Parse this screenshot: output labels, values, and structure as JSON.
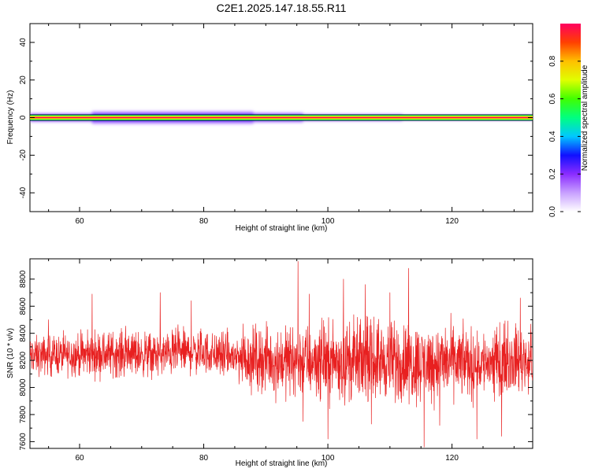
{
  "title": "C2E1.2025.147.18.55.R11",
  "colors": {
    "signal": "#e82020",
    "frame": "#000000",
    "colormap": [
      "#ffffff",
      "#c8a0ff",
      "#8a2cff",
      "#1010ff",
      "#00c8ff",
      "#00ff80",
      "#40ff00",
      "#e0ff00",
      "#ffc000",
      "#ff4000",
      "#ff0060"
    ]
  },
  "chart_data": [
    {
      "type": "heatmap",
      "name": "spectrogram",
      "xlabel": "Height of straight line (km)",
      "ylabel": "Frequency (Hz)",
      "xlim": [
        52,
        133
      ],
      "ylim": [
        -50,
        50
      ],
      "xticks": [
        60,
        80,
        100,
        120
      ],
      "yticks": [
        -40,
        -20,
        0,
        20,
        40
      ],
      "xtick_labels": [
        "60",
        "80",
        "100",
        "120"
      ],
      "ytick_labels": [
        "-40",
        "-20",
        "0",
        "20",
        "40"
      ],
      "colorbar": {
        "label": "Normalized spectral amplitude",
        "range": [
          0,
          1
        ],
        "ticks": [
          "0.0",
          "0.2",
          "0.4",
          "0.6",
          "0.8"
        ]
      },
      "band": {
        "center_hz": 0,
        "core_halfwidth_hz": 0.8,
        "outline_halfwidth_hz": 1.5,
        "spread": [
          {
            "x": [
              52,
              62
            ],
            "halfwidth_hz": 2.5
          },
          {
            "x": [
              62,
              88
            ],
            "halfwidth_hz": 3.6
          },
          {
            "x": [
              88,
              96
            ],
            "halfwidth_hz": 2.8
          },
          {
            "x": [
              96,
              112
            ],
            "halfwidth_hz": 2.0
          },
          {
            "x": [
              112,
              133
            ],
            "halfwidth_hz": 1.5
          }
        ]
      }
    },
    {
      "type": "line",
      "name": "snr",
      "xlabel": "Height of straight line (km)",
      "ylabel": "SNR (10 * v/v)",
      "xlim": [
        52,
        133
      ],
      "ylim": [
        7550,
        8950
      ],
      "xticks": [
        60,
        80,
        100,
        120
      ],
      "yticks": [
        7600,
        7800,
        8000,
        8200,
        8400,
        8600,
        8800
      ],
      "xtick_labels": [
        "60",
        "80",
        "100",
        "120"
      ],
      "ytick_labels": [
        "7600",
        "7800",
        "8000",
        "8200",
        "8400",
        "8600",
        "8800"
      ],
      "series": [
        {
          "name": "SNR",
          "x": [
            52,
            56,
            60,
            64,
            68,
            72,
            76,
            80,
            84,
            86,
            88,
            92,
            96,
            100,
            104,
            108,
            112,
            116,
            120,
            124,
            128,
            133
          ],
          "mean": [
            8230,
            8240,
            8240,
            8250,
            8250,
            8240,
            8260,
            8260,
            8230,
            8220,
            8220,
            8200,
            8200,
            8200,
            8190,
            8200,
            8190,
            8180,
            8190,
            8180,
            8200,
            8200
          ],
          "amplitude": [
            120,
            120,
            130,
            140,
            140,
            130,
            140,
            130,
            140,
            170,
            190,
            200,
            230,
            230,
            250,
            230,
            250,
            230,
            220,
            210,
            190,
            200
          ],
          "spikes": [
            [
              95.2,
              8930
            ],
            [
              113,
              8880
            ],
            [
              55,
              8500
            ],
            [
              62,
              8690
            ],
            [
              73,
              8700
            ],
            [
              78,
              8640
            ],
            [
              96,
              7750
            ],
            [
              97,
              8690
            ],
            [
              100,
              7620
            ],
            [
              102.5,
              8800
            ],
            [
              106,
              8760
            ],
            [
              107,
              7730
            ],
            [
              110,
              8700
            ],
            [
              115.5,
              7560
            ],
            [
              118,
              7720
            ],
            [
              124,
              7620
            ],
            [
              128,
              7640
            ],
            [
              131,
              8660
            ]
          ]
        }
      ]
    }
  ]
}
